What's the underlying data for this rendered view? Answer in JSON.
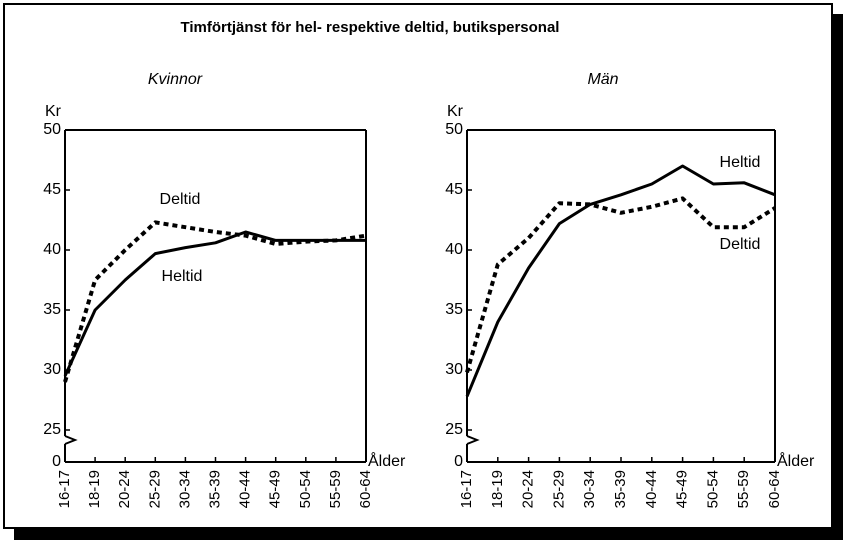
{
  "title": "Timförtjänst för hel- respektive deltid, butikspersonal",
  "chart_data": [
    {
      "type": "line",
      "subtitle": "Kvinnor",
      "ylabel": "Kr",
      "xlabel": "Ålder",
      "categories": [
        "16-17",
        "18-19",
        "20-24",
        "25-29",
        "30-34",
        "35-39",
        "40-44",
        "45-49",
        "50-54",
        "55-59",
        "60-64"
      ],
      "ylim": [
        25,
        50
      ],
      "yticks": [
        0,
        25,
        30,
        35,
        40,
        45,
        50
      ],
      "axis_break": true,
      "series": [
        {
          "name": "Heltid",
          "color": "#000000",
          "values": [
            29.5,
            35,
            37.5,
            39.7,
            40.2,
            40.6,
            41.5,
            40.8,
            40.8,
            40.8,
            40.8
          ]
        },
        {
          "name": "Deltid",
          "color": "#000000",
          "values": [
            29,
            37.5,
            40,
            42.3,
            41.9,
            41.5,
            41.2,
            40.5,
            40.7,
            40.8,
            41.2
          ]
        }
      ]
    },
    {
      "type": "line",
      "subtitle": "Män",
      "ylabel": "Kr",
      "xlabel": "Ålder",
      "categories": [
        "16-17",
        "18-19",
        "20-24",
        "25-29",
        "30-34",
        "35-39",
        "40-44",
        "45-49",
        "50-54",
        "55-59",
        "60-64"
      ],
      "ylim": [
        25,
        50
      ],
      "yticks": [
        0,
        25,
        30,
        35,
        40,
        45,
        50
      ],
      "axis_break": true,
      "series": [
        {
          "name": "Heltid",
          "color": "#000000",
          "values": [
            27.8,
            34,
            38.5,
            42.2,
            43.8,
            44.6,
            45.5,
            47,
            45.5,
            45.6,
            44.6
          ]
        },
        {
          "name": "Deltid",
          "color": "#000000",
          "values": [
            29.8,
            38.8,
            41,
            43.9,
            43.8,
            43.1,
            43.6,
            44.3,
            41.9,
            41.9,
            43.5
          ]
        }
      ]
    }
  ]
}
